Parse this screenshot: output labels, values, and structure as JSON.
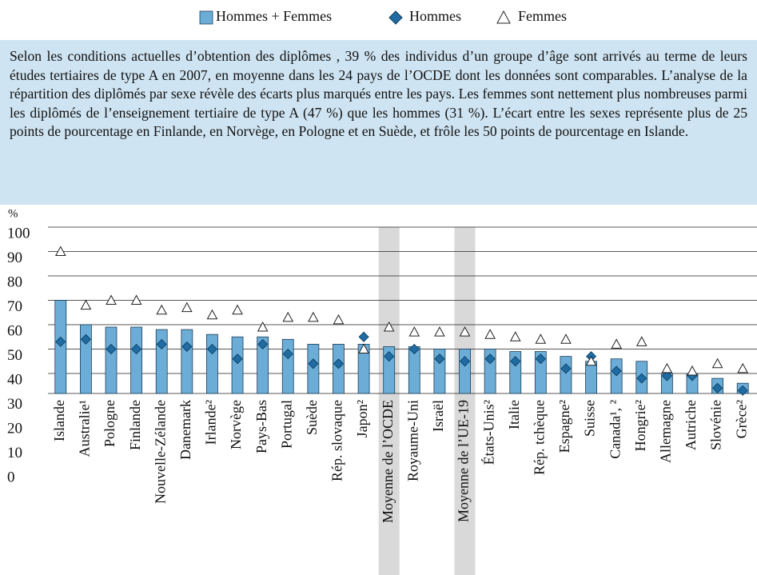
{
  "chart_data": {
    "type": "bar",
    "text": "Selon les conditions actuelles d’obtention des diplômes , 39 % des individus d’un groupe d’âge sont arrivés au terme de leurs études tertiaires de type A en 2007, en moyenne dans les 24 pays de l’OCDE dont les données sont comparables. L’analyse de la répartition des diplômés par sexe révèle des écarts plus marqués entre les pays. Les femmes sont nettement plus nombreuses parmi les diplômés de l’enseignement tertiaire de type A (47 %) que les hommes (31 %). L’écart entre les sexes représente plus de 25 points de pourcentage en Finlande, en Norvège, en Pologne et en Suède, et frôle les 50 points de pourcentage en Islande.",
    "y_unit": "%",
    "categories": [
      "Islande",
      "Australie¹",
      "Pologne",
      "Finlande",
      "Nouvelle-Zélande",
      "Danemark",
      "Irlande²",
      "Norvège",
      "Pays-Bas",
      "Portugal",
      "Suède",
      "Rép. slovaque",
      "Japon²",
      "Moyenne de l’OCDE",
      "Royaume-Uni",
      "Israël",
      "Moyenne de l’UE-19",
      "États-Unis²",
      "Italie",
      "Rép. tchèque",
      "Espagne²",
      "Suisse",
      "Canada¹, ²",
      "Hongrie²",
      "Allemagne",
      "Autriche",
      "Slovénie",
      "Grèce²"
    ],
    "highlight": [
      13,
      16
    ],
    "series": [
      {
        "name": "Hommes + Femmes",
        "marker": "bar",
        "color": "#6badd6",
        "values": [
          70,
          60,
          59,
          59,
          58,
          58,
          56,
          55,
          55,
          54,
          52,
          52,
          52,
          51,
          51,
          50,
          50,
          50,
          49,
          49,
          47,
          45,
          46,
          45,
          40,
          40,
          38,
          36
        ]
      },
      {
        "name": "Hommes",
        "marker": "diamond",
        "color": "#1f6ca3",
        "values": [
          53,
          54,
          50,
          50,
          52,
          51,
          50,
          46,
          52,
          48,
          44,
          44,
          55,
          47,
          50,
          46,
          45,
          46,
          45,
          46,
          42,
          47,
          41,
          38,
          39,
          39,
          34,
          33
        ]
      },
      {
        "name": "Femmes",
        "marker": "triangle",
        "color": "#ffffff",
        "values": [
          90,
          68,
          70,
          70,
          66,
          67,
          64,
          66,
          59,
          63,
          63,
          62,
          50,
          59,
          57,
          57,
          57,
          56,
          55,
          54,
          54,
          45,
          52,
          53,
          42,
          41,
          44,
          42
        ]
      }
    ],
    "ylim": [
      0,
      100
    ],
    "yticks": [
      0,
      10,
      20,
      30,
      40,
      50,
      60,
      70,
      80,
      90,
      100
    ],
    "grid": true
  }
}
